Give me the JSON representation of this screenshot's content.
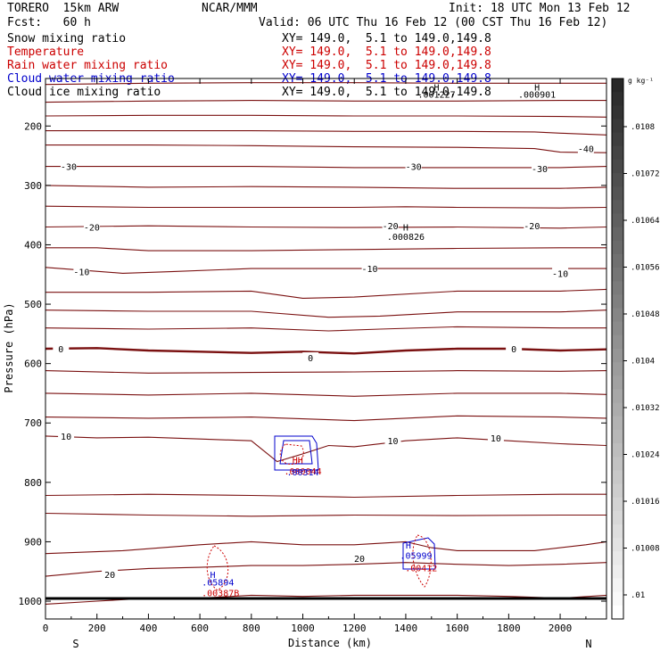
{
  "header": {
    "model": "TORERO  15km ARW",
    "center": "NCAR/MMM",
    "init": "Init: 18 UTC Mon 13 Feb 12",
    "fcst": "Fcst:   60 h",
    "valid": "Valid: 06 UTC Thu 16 Feb 12 (00 CST Thu 16 Feb 12)"
  },
  "fields": [
    {
      "name": "Snow mixing ratio",
      "xy": "",
      "color": "#000000"
    },
    {
      "name": "Temperature",
      "xy": "XY= 149.0,  5.1 to 149.0,149.8",
      "color": "#cc0000"
    },
    {
      "name": "Rain water mixing ratio",
      "xy": "XY= 149.0,  5.1 to 149.0,149.8",
      "color": "#cc0000"
    },
    {
      "name": "Cloud water mixing ratio",
      "xy": "XY= 149.0,  5.1 to 149.0,149.8",
      "color": "#0000cc"
    },
    {
      "name": "Cloud ice mixing ratio",
      "xy": "XY= 149.0,  5.1 to 149.0,149.8",
      "color": "#000000"
    }
  ],
  "snow_xy": "XY= 149.0,  5.1 to 149.0,149.8",
  "chart_data": {
    "type": "cross-section contour",
    "xlabel": "Distance (km)",
    "ylabel": "Pressure (hPa)",
    "xlim": [
      0,
      2180
    ],
    "ylim": [
      1030,
      120
    ],
    "xticks": [
      0,
      200,
      400,
      600,
      800,
      1000,
      1200,
      1400,
      1600,
      1800,
      2000
    ],
    "yticks": [
      200,
      300,
      400,
      500,
      600,
      700,
      800,
      900,
      1000
    ],
    "left_end": "S",
    "right_end": "N",
    "colorbar": {
      "unit": "g kg⁻¹",
      "ticks": [
        "0.0108",
        ".01072",
        ".01064",
        ".01056",
        ".01048",
        ".0104",
        ".01032",
        ".01024",
        ".01016",
        ".01008",
        ".01"
      ],
      "display_ticks": [
        ".0108",
        ".01072",
        ".01064",
        ".01056",
        ".01048",
        ".0104",
        ".01032",
        ".01024",
        ".01016",
        ".01008",
        ".01"
      ]
    },
    "isotherms": [
      {
        "value": -40,
        "x": [
          0,
          400,
          800,
          1200,
          1600,
          2000,
          2180
        ],
        "p": [
          130,
          128,
          127,
          127,
          128,
          128,
          128
        ]
      },
      {
        "value": -40,
        "x": [
          0,
          400,
          800,
          1200,
          1600,
          2000,
          2180
        ],
        "p": [
          160,
          158,
          157,
          158,
          158,
          157,
          157
        ]
      },
      {
        "value": -40,
        "x": [
          0,
          400,
          800,
          1200,
          1600,
          2000,
          2180
        ],
        "p": [
          183,
          182,
          182,
          183,
          183,
          184,
          185
        ]
      },
      {
        "value": -40,
        "x": [
          0,
          400,
          800,
          1200,
          1600,
          1900,
          2000,
          2180
        ],
        "p": [
          208,
          208,
          208,
          209,
          209,
          210,
          212,
          215
        ]
      },
      {
        "value": -40,
        "x": [
          0,
          400,
          800,
          1200,
          1600,
          1900,
          2000,
          2180
        ],
        "p": [
          232,
          232,
          233,
          235,
          236,
          238,
          244,
          245
        ]
      },
      {
        "value": -30,
        "x": [
          0,
          400,
          800,
          1200,
          1600,
          2000,
          2180
        ],
        "p": [
          268,
          268,
          268,
          270,
          270,
          270,
          268
        ]
      },
      {
        "value": -30,
        "x": [
          0,
          400,
          800,
          1200,
          1600,
          2000,
          2180
        ],
        "p": [
          300,
          303,
          302,
          303,
          305,
          305,
          303
        ]
      },
      {
        "value": -30,
        "x": [
          0,
          400,
          800,
          1200,
          1400,
          1600,
          2000,
          2180
        ],
        "p": [
          335,
          337,
          337,
          337,
          336,
          337,
          338,
          337
        ]
      },
      {
        "value": -20,
        "x": [
          0,
          400,
          800,
          1200,
          1600,
          2000,
          2180
        ],
        "p": [
          370,
          368,
          370,
          371,
          370,
          372,
          370
        ]
      },
      {
        "value": -20,
        "x": [
          0,
          200,
          400,
          800,
          1200,
          1600,
          2000,
          2180
        ],
        "p": [
          405,
          405,
          410,
          410,
          408,
          406,
          405,
          405
        ]
      },
      {
        "value": -10,
        "x": [
          0,
          300,
          500,
          800,
          1200,
          1600,
          2000,
          2180
        ],
        "p": [
          438,
          448,
          445,
          440,
          440,
          440,
          440,
          440
        ]
      },
      {
        "value": -10,
        "x": [
          0,
          400,
          800,
          1000,
          1200,
          1600,
          2000,
          2180
        ],
        "p": [
          480,
          480,
          478,
          490,
          488,
          478,
          478,
          475
        ]
      },
      {
        "value": -10,
        "x": [
          0,
          400,
          800,
          1100,
          1300,
          1600,
          2000,
          2180
        ],
        "p": [
          510,
          512,
          512,
          522,
          520,
          513,
          513,
          510
        ]
      },
      {
        "value": -10,
        "x": [
          0,
          400,
          800,
          1100,
          1300,
          1600,
          2000,
          2180
        ],
        "p": [
          540,
          542,
          540,
          545,
          542,
          538,
          540,
          540
        ]
      },
      {
        "value": 0,
        "x": [
          0,
          200,
          400,
          600,
          800,
          1000,
          1200,
          1400,
          1600,
          1800,
          2000,
          2180
        ],
        "p": [
          575,
          574,
          578,
          580,
          582,
          580,
          583,
          578,
          575,
          575,
          578,
          576
        ]
      },
      {
        "value": 0,
        "x": [
          0,
          400,
          800,
          1200,
          1600,
          2000,
          2180
        ],
        "p": [
          612,
          616,
          615,
          614,
          612,
          613,
          612
        ]
      },
      {
        "value": 0,
        "x": [
          0,
          400,
          800,
          1200,
          1600,
          2000,
          2180
        ],
        "p": [
          650,
          653,
          650,
          655,
          650,
          650,
          652
        ]
      },
      {
        "value": 0,
        "x": [
          0,
          400,
          800,
          1200,
          1600,
          2000,
          2180
        ],
        "p": [
          690,
          692,
          690,
          696,
          688,
          690,
          692
        ]
      },
      {
        "value": 10,
        "x": [
          0,
          200,
          400,
          600,
          800,
          900,
          1000,
          1100,
          1200,
          1400,
          1600,
          1800,
          2000,
          2180
        ],
        "p": [
          722,
          725,
          724,
          727,
          730,
          765,
          752,
          738,
          740,
          730,
          725,
          730,
          735,
          738
        ]
      },
      {
        "value": 10,
        "x": [
          0,
          400,
          800,
          1200,
          1600,
          2000,
          2180
        ],
        "p": [
          822,
          820,
          822,
          825,
          822,
          820,
          820
        ]
      },
      {
        "value": 10,
        "x": [
          0,
          400,
          800,
          1200,
          1600,
          2000,
          2180
        ],
        "p": [
          852,
          855,
          857,
          855,
          856,
          855,
          855
        ]
      },
      {
        "value": 20,
        "x": [
          0,
          300,
          600,
          800,
          1000,
          1200,
          1400,
          1500,
          1600,
          1900,
          2100,
          2180
        ],
        "p": [
          920,
          915,
          905,
          900,
          905,
          905,
          900,
          910,
          915,
          915,
          905,
          900
        ]
      },
      {
        "value": 20,
        "x": [
          0,
          200,
          400,
          600,
          800,
          1000,
          1200,
          1400,
          1600,
          1800,
          2000,
          2180
        ],
        "p": [
          958,
          950,
          945,
          943,
          940,
          940,
          938,
          935,
          938,
          940,
          938,
          935
        ]
      },
      {
        "value": 20,
        "x": [
          0,
          200,
          400,
          600,
          800,
          1000,
          1200,
          1400,
          1600,
          1800,
          2000,
          2180
        ],
        "p": [
          1005,
          1000,
          995,
          995,
          990,
          992,
          990,
          990,
          990,
          992,
          995,
          990
        ]
      }
    ],
    "labels": [
      {
        "text": "-30",
        "x": 90,
        "p": 268,
        "series": "temp"
      },
      {
        "text": "-30",
        "x": 1430,
        "p": 268,
        "series": "temp"
      },
      {
        "text": "-30",
        "x": 1920,
        "p": 272,
        "series": "temp"
      },
      {
        "text": "-40",
        "x": 2100,
        "p": 238,
        "series": "temp"
      },
      {
        "text": "-20",
        "x": 180,
        "p": 370,
        "series": "temp"
      },
      {
        "text": "-20",
        "x": 1340,
        "p": 368,
        "series": "temp"
      },
      {
        "text": "-20",
        "x": 1890,
        "p": 368,
        "series": "temp"
      },
      {
        "text": "-10",
        "x": 140,
        "p": 445,
        "series": "temp"
      },
      {
        "text": "-10",
        "x": 1260,
        "p": 440,
        "series": "temp"
      },
      {
        "text": "-10",
        "x": 2000,
        "p": 448,
        "series": "temp"
      },
      {
        "text": "0",
        "x": 60,
        "p": 575,
        "series": "temp"
      },
      {
        "text": "0",
        "x": 1030,
        "p": 590,
        "series": "temp"
      },
      {
        "text": "0",
        "x": 1820,
        "p": 575,
        "series": "temp"
      },
      {
        "text": "10",
        "x": 80,
        "p": 722,
        "series": "temp"
      },
      {
        "text": "10",
        "x": 1350,
        "p": 730,
        "series": "temp"
      },
      {
        "text": "10",
        "x": 1750,
        "p": 725,
        "series": "temp"
      },
      {
        "text": "20",
        "x": 1220,
        "p": 928,
        "series": "temp"
      },
      {
        "text": "20",
        "x": 250,
        "p": 955,
        "series": "temp"
      }
    ],
    "maxima": [
      {
        "text": "H",
        "x": 1520,
        "p": 134,
        "color": "#000000"
      },
      {
        "text": ".001227",
        "x": 1520,
        "p": 146,
        "color": "#000000"
      },
      {
        "text": "H",
        "x": 1910,
        "p": 134,
        "color": "#000000"
      },
      {
        "text": ".000901",
        "x": 1910,
        "p": 146,
        "color": "#000000"
      },
      {
        "text": "H",
        "x": 1400,
        "p": 370,
        "color": "#000000"
      },
      {
        "text": ".000826",
        "x": 1400,
        "p": 386,
        "color": "#000000"
      },
      {
        "text": "HH",
        "x": 980,
        "p": 762,
        "color": "#cc0000"
      },
      {
        "text": ".000044",
        "x": 1000,
        "p": 781,
        "color": "#cc0000"
      },
      {
        "text": ".00314",
        "x": 1000,
        "p": 782,
        "color": "#0000cc"
      },
      {
        "text": "H",
        "x": 650,
        "p": 955,
        "color": "#0000cc"
      },
      {
        "text": ".05894",
        "x": 670,
        "p": 968,
        "color": "#0000cc"
      },
      {
        "text": ".00387B",
        "x": 680,
        "p": 986,
        "color": "#cc0000"
      },
      {
        "text": "H",
        "x": 1410,
        "p": 905,
        "color": "#0000cc"
      },
      {
        "text": ".05999",
        "x": 1440,
        "p": 923,
        "color": "#0000cc"
      },
      {
        "text": ".00412",
        "x": 1460,
        "p": 944,
        "color": "#cc0000"
      }
    ]
  }
}
